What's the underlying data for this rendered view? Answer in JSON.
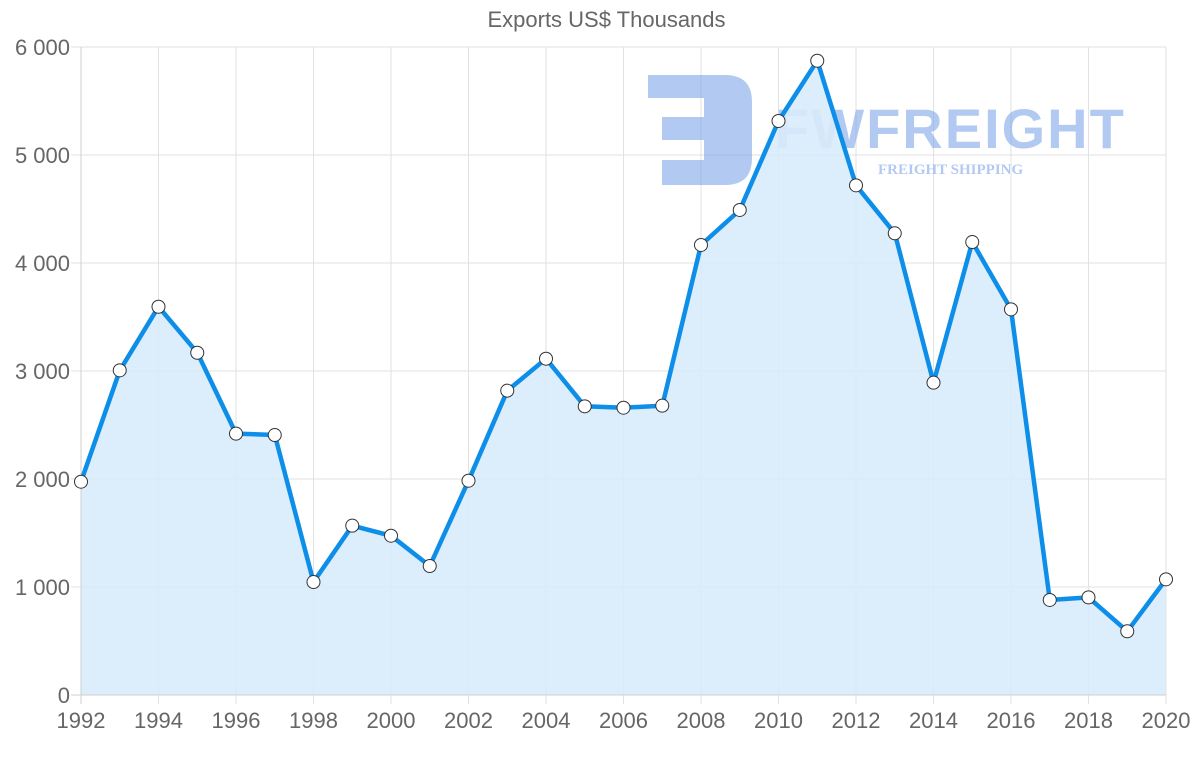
{
  "chart_data": {
    "type": "area",
    "title": "Exports US$ Thousands",
    "xlabel": "",
    "ylabel": "",
    "x": [
      1992,
      1993,
      1994,
      1995,
      1996,
      1997,
      1998,
      1999,
      2000,
      2001,
      2002,
      2003,
      2004,
      2005,
      2006,
      2007,
      2008,
      2009,
      2010,
      2011,
      2012,
      2013,
      2014,
      2015,
      2016,
      2017,
      2018,
      2019,
      2020
    ],
    "series": [
      {
        "name": "Exports US$ Thousands",
        "values": [
          1975,
          3006,
          3595,
          3169,
          2420,
          2407,
          1046,
          1568,
          1475,
          1194,
          1984,
          2818,
          3114,
          2673,
          2660,
          2679,
          4167,
          4491,
          5315,
          5873,
          4719,
          4275,
          2892,
          4194,
          3571,
          880,
          904,
          590,
          1071
        ]
      }
    ],
    "ylim": [
      0,
      6000
    ],
    "yticks": [
      0,
      1000,
      2000,
      3000,
      4000,
      5000,
      6000
    ],
    "ytick_labels": [
      "0",
      "1 000",
      "2 000",
      "3 000",
      "4 000",
      "5 000",
      "6 000"
    ],
    "xtick_labels": [
      "1992",
      "1994",
      "1996",
      "1998",
      "2000",
      "2002",
      "2004",
      "2006",
      "2008",
      "2010",
      "2012",
      "2014",
      "2016",
      "2018",
      "2020"
    ],
    "grid": true,
    "legend": "none",
    "colors": {
      "line": "#0d8ee9",
      "fill": "#d8ebfb",
      "point_fill": "#ffffff",
      "point_stroke": "#333333"
    }
  },
  "watermark": {
    "brand": "FWFREIGHT",
    "tagline": "FREIGHT SHIPPING",
    "color": "#7fa6e8"
  }
}
